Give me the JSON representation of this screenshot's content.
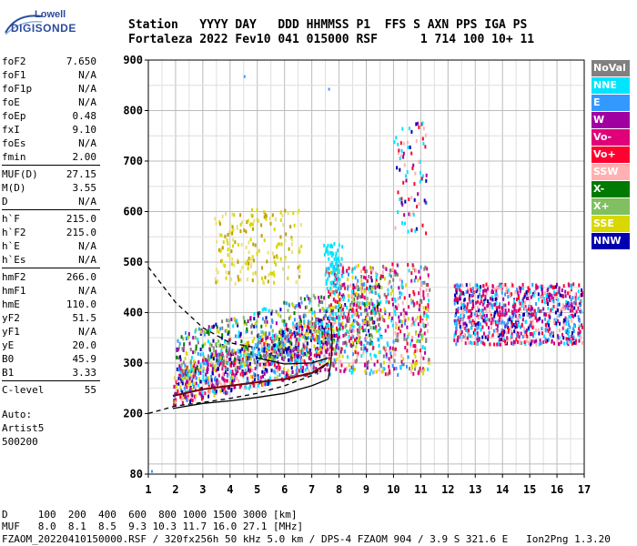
{
  "logo": {
    "top": "Lowell",
    "bottom": "DIGISONDE"
  },
  "header": {
    "labels": "Station   YYYY DAY   DDD HHMMSS P1  FFS S AXN PPS IGA PS",
    "values": "Fortaleza 2022 Fev10 041 015000 RSF      1 714 100 10+ 11"
  },
  "params": [
    {
      "k": "foF2",
      "v": "7.650"
    },
    {
      "k": "foF1",
      "v": "N/A"
    },
    {
      "k": "foF1p",
      "v": "N/A"
    },
    {
      "k": "foE",
      "v": "N/A"
    },
    {
      "k": "foEp",
      "v": "0.48"
    },
    {
      "k": "fxI",
      "v": "9.10"
    },
    {
      "k": "foEs",
      "v": "N/A"
    },
    {
      "k": "fmin",
      "v": "2.00"
    },
    {
      "k": "MUF(D)",
      "v": "27.15"
    },
    {
      "k": "M(D)",
      "v": "3.55"
    },
    {
      "k": "D",
      "v": "N/A"
    },
    {
      "k": "h`F",
      "v": "215.0"
    },
    {
      "k": "h`F2",
      "v": "215.0"
    },
    {
      "k": "h`E",
      "v": "N/A"
    },
    {
      "k": "h`Es",
      "v": "N/A"
    },
    {
      "k": "hmF2",
      "v": "266.0"
    },
    {
      "k": "hmF1",
      "v": "N/A"
    },
    {
      "k": "hmE",
      "v": "110.0"
    },
    {
      "k": "yF2",
      "v": "51.5"
    },
    {
      "k": "yF1",
      "v": "N/A"
    },
    {
      "k": "yE",
      "v": "20.0"
    },
    {
      "k": "B0",
      "v": "45.9"
    },
    {
      "k": "B1",
      "v": "3.33"
    },
    {
      "k": "C-level",
      "v": "55"
    }
  ],
  "autoscale": {
    "line1": "Auto:",
    "line2": "Artist5",
    "line3": "500200"
  },
  "legend": [
    {
      "name": "NoVal",
      "color": "#808080"
    },
    {
      "name": "NNE",
      "color": "#00e5ff"
    },
    {
      "name": "E",
      "color": "#3399ff"
    },
    {
      "name": "W",
      "color": "#a000a0"
    },
    {
      "name": "Vo-",
      "color": "#e0007a"
    },
    {
      "name": "Vo+",
      "color": "#ff0030"
    },
    {
      "name": "SSW",
      "color": "#ffb0b0"
    },
    {
      "name": "X-",
      "color": "#007a00"
    },
    {
      "name": "X+",
      "color": "#80c060"
    },
    {
      "name": "SSE",
      "color": "#d8d800"
    },
    {
      "name": "NNW",
      "color": "#0000b0"
    }
  ],
  "bottom": {
    "line1": "D     100  200  400  600  800 1000 1500 3000 [km]",
    "line2": "MUF   8.0  8.1  8.5  9.3 10.3 11.7 16.0 27.1 [MHz]",
    "line3": "FZAOM_20220410150000.RSF / 320fx256h 50 kHz 5.0 km / DPS-4 FZAOM 904 / 3.9 S 321.6 E   Ion2Png 1.3.20"
  },
  "chart_data": {
    "type": "scatter",
    "x": {
      "min": 1,
      "max": 17,
      "ticks": [
        1,
        2,
        3,
        4,
        5,
        6,
        7,
        8,
        9,
        10,
        11,
        12,
        13,
        14,
        15,
        16,
        17
      ]
    },
    "y": {
      "min": 80,
      "max": 900,
      "ticks": [
        80,
        200,
        300,
        400,
        500,
        600,
        700,
        800,
        900
      ]
    },
    "grid": true,
    "clusters": [
      {
        "name": "F-trace",
        "xmin": 1.9,
        "xmax": 7.6,
        "ymin": 220,
        "ymax": 330,
        "colors": [
          "#ff0030",
          "#e0007a",
          "#d8d800",
          "#a000a0",
          "#3399ff",
          "#00e5ff",
          "#ffb0b0",
          "#0000b0"
        ],
        "n": 900
      },
      {
        "name": "F-trace-upper",
        "xmin": 2.0,
        "xmax": 9.5,
        "ymin": 280,
        "ymax": 420,
        "colors": [
          "#00e5ff",
          "#3399ff",
          "#a000a0",
          "#d8d800",
          "#80c060",
          "#0000b0",
          "#007a00",
          "#808080"
        ],
        "n": 650
      },
      {
        "name": "spread-8-11",
        "xmin": 7.5,
        "xmax": 11.3,
        "ymin": 280,
        "ymax": 500,
        "colors": [
          "#ff0030",
          "#d8d800",
          "#00e5ff",
          "#a000a0",
          "#3399ff",
          "#e0007a",
          "#808080",
          "#ffb0b0"
        ],
        "n": 700
      },
      {
        "name": "SSE-cloud",
        "xmin": 3.4,
        "xmax": 6.6,
        "ymin": 460,
        "ymax": 610,
        "colors": [
          "#d8d800",
          "#e8e080",
          "#c0a000"
        ],
        "n": 180
      },
      {
        "name": "NNE-7.8",
        "xmin": 7.4,
        "xmax": 8.1,
        "ymin": 450,
        "ymax": 540,
        "colors": [
          "#00e5ff"
        ],
        "n": 60
      },
      {
        "name": "high-10.5",
        "xmin": 10.0,
        "xmax": 11.2,
        "ymin": 560,
        "ymax": 780,
        "colors": [
          "#a000a0",
          "#ff0030",
          "#0000b0",
          "#00e5ff",
          "#ffb0b0"
        ],
        "n": 80
      },
      {
        "name": "band-12-17",
        "xmin": 12.2,
        "xmax": 16.9,
        "ymin": 340,
        "ymax": 460,
        "colors": [
          "#0000b0",
          "#3399ff",
          "#00e5ff",
          "#a000a0",
          "#ff0030",
          "#e0007a",
          "#ffb0b0"
        ],
        "n": 900
      }
    ],
    "curves": [
      {
        "name": "profile-low",
        "style": "solid",
        "color": "#000",
        "points": [
          [
            1.9,
            210
          ],
          [
            3,
            220
          ],
          [
            4,
            225
          ],
          [
            5,
            232
          ],
          [
            6,
            240
          ],
          [
            7,
            255
          ],
          [
            7.6,
            268
          ]
        ]
      },
      {
        "name": "profile-vertical",
        "style": "solid",
        "color": "#000",
        "points": [
          [
            7.6,
            268
          ],
          [
            7.7,
            300
          ],
          [
            7.75,
            340
          ],
          [
            7.7,
            380
          ]
        ]
      },
      {
        "name": "trace-dark",
        "style": "solid",
        "color": "#7a0000",
        "points": [
          [
            1.9,
            235
          ],
          [
            3,
            248
          ],
          [
            4,
            255
          ],
          [
            5,
            262
          ],
          [
            6,
            268
          ],
          [
            7,
            280
          ],
          [
            7.6,
            300
          ]
        ]
      },
      {
        "name": "model-dashed",
        "style": "dashed",
        "color": "#000",
        "points": [
          [
            1,
            490
          ],
          [
            1.5,
            455
          ],
          [
            2,
            420
          ],
          [
            3,
            370
          ],
          [
            4,
            340
          ],
          [
            5,
            330
          ]
        ]
      },
      {
        "name": "model-dashed-low",
        "style": "dashed",
        "color": "#000",
        "points": [
          [
            1,
            200
          ],
          [
            2,
            215
          ],
          [
            3,
            222
          ],
          [
            4,
            230
          ],
          [
            5,
            240
          ],
          [
            6,
            255
          ],
          [
            7,
            275
          ],
          [
            7.6,
            300
          ]
        ]
      },
      {
        "name": "trace-black-mid",
        "style": "solid",
        "color": "#000",
        "points": [
          [
            5,
            310
          ],
          [
            6,
            298
          ],
          [
            7,
            300
          ],
          [
            7.6,
            310
          ]
        ]
      }
    ]
  }
}
